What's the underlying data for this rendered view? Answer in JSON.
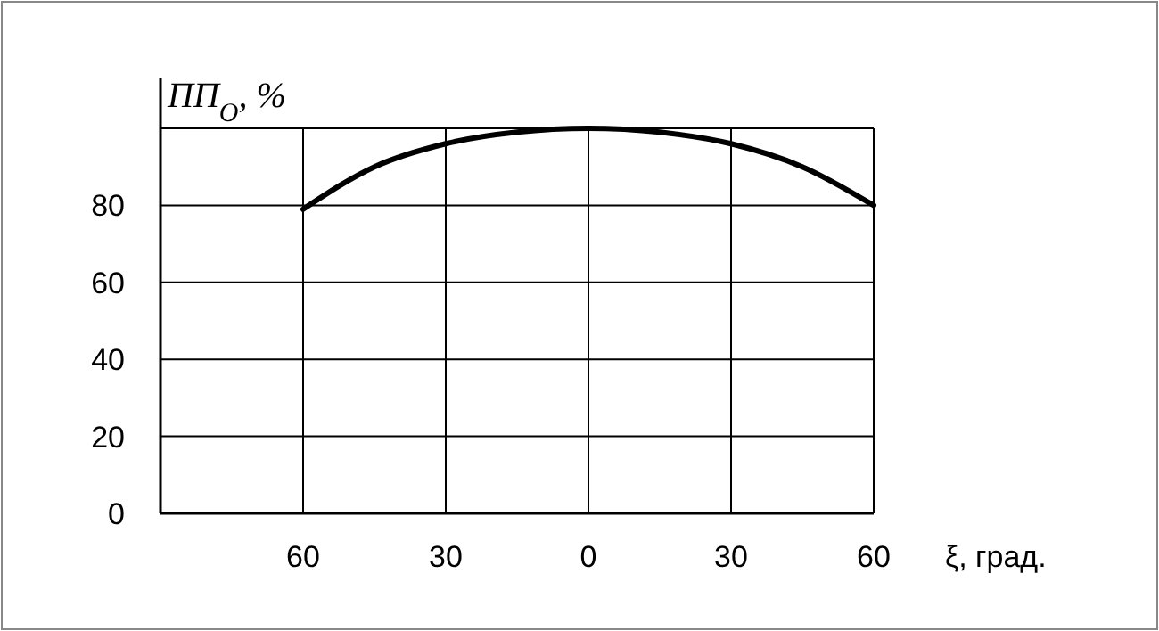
{
  "chart_data": {
    "type": "line",
    "xlabel": "ξ, град.",
    "ylabel": "ПП$_{O}$, %",
    "x": [
      -60,
      -45,
      -30,
      -15,
      0,
      15,
      30,
      45,
      60
    ],
    "series": [
      {
        "color": "#000000",
        "values": [
          79,
          90,
          96,
          99,
          100,
          99,
          96,
          90,
          80
        ]
      }
    ],
    "xlim": [
      -90,
      60
    ],
    "xticks": [
      {
        "value": -60,
        "label": "60"
      },
      {
        "value": -30,
        "label": "30"
      },
      0,
      30,
      60
    ],
    "ylim": [
      0,
      100
    ],
    "yticks": [
      0,
      20,
      40,
      60,
      80,
      {
        "value": 100,
        "label": null
      }
    ],
    "grid": true,
    "marker": "none",
    "line_style": "solid"
  }
}
